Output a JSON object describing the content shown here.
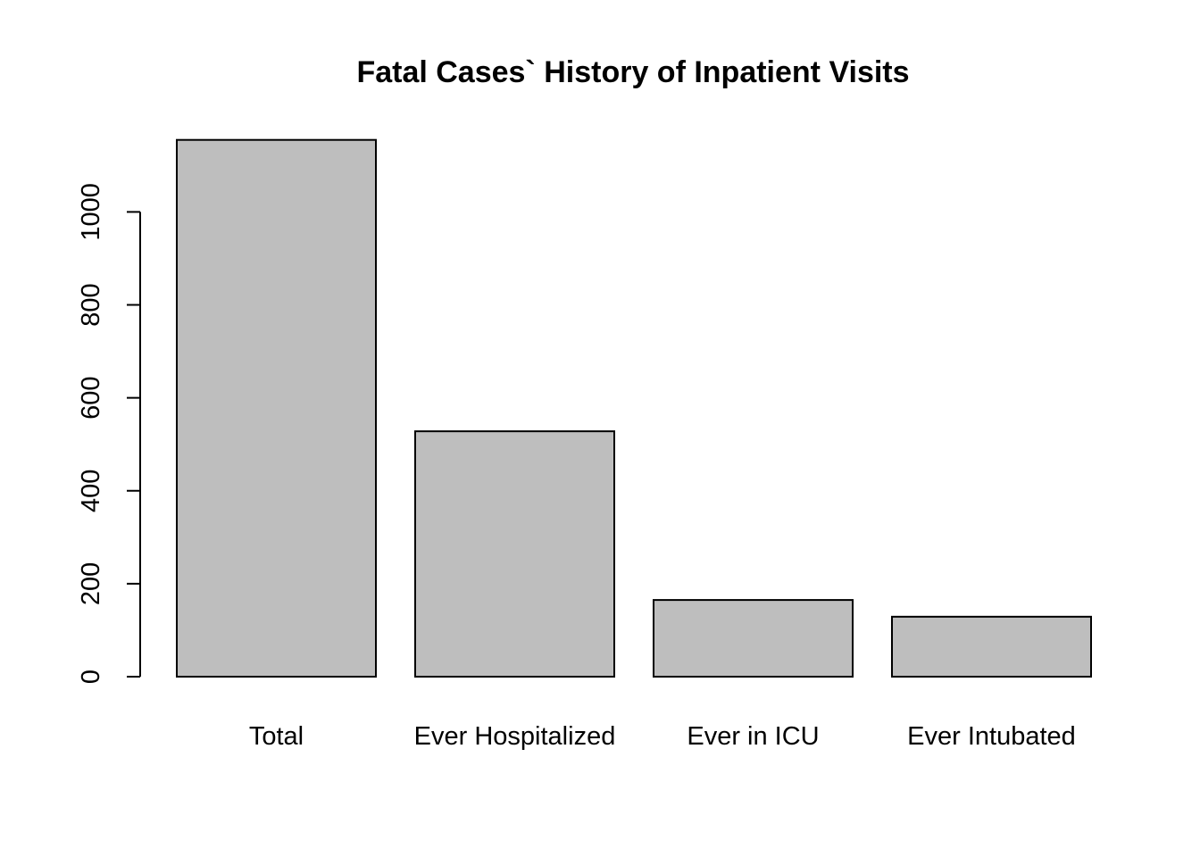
{
  "chart_data": {
    "type": "bar",
    "title": "Fatal Cases` History of Inpatient Visits",
    "xlabel": "",
    "ylabel": "",
    "categories": [
      "Total",
      "Ever Hospitalized",
      "Ever in ICU",
      "Ever Intubated"
    ],
    "values": [
      1155,
      528,
      165,
      129
    ],
    "ylim": [
      0,
      1155
    ],
    "yticks": [
      0,
      200,
      400,
      600,
      800,
      1000
    ],
    "ytick_labels": [
      "0",
      "200",
      "400",
      "600",
      "800",
      "1000"
    ],
    "grid": false,
    "legend": "none",
    "colors": {
      "bar_fill": "#bebebe",
      "bar_stroke": "#000000",
      "axis": "#000000",
      "text": "#000000",
      "background": "#ffffff"
    }
  }
}
